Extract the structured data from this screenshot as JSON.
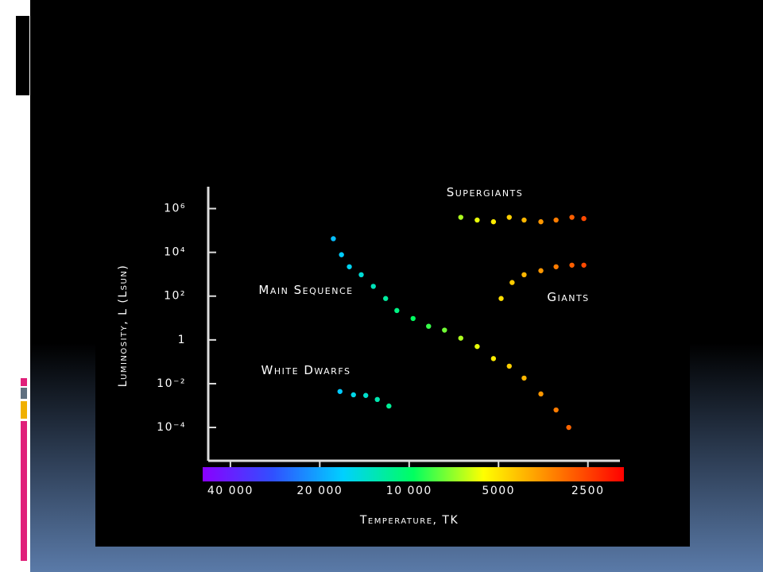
{
  "chart_data": {
    "type": "scatter",
    "xlabel": "Temperature, TK",
    "ylabel": "Luminosity, L (Lsun)",
    "xscale": "log",
    "yscale": "log",
    "xlim": [
      47500,
      1950
    ],
    "ylim": [
      3e-06,
      10000000
    ],
    "xticks": [
      {
        "value": 40000,
        "label": "40 000"
      },
      {
        "value": 20000,
        "label": "20 000"
      },
      {
        "value": 10000,
        "label": "10 000"
      },
      5000,
      2500
    ],
    "yticks": [
      {
        "value": 1000000,
        "label": "10⁶"
      },
      {
        "value": 10000,
        "label": "10⁴"
      },
      {
        "value": 100,
        "label": "10²"
      },
      1,
      {
        "value": 0.01,
        "label": "10⁻²"
      },
      {
        "value": 0.0001,
        "label": "10⁻⁴"
      }
    ],
    "colormap": [
      "#8a00ff",
      "#3050ff",
      "#00d0ff",
      "#00ff60",
      "#ffff00",
      "#ff8000",
      "#ff0000"
    ],
    "series": [
      {
        "name": "Main Sequence",
        "x": [
          18000,
          16900,
          15900,
          14500,
          13200,
          12000,
          11000,
          9700,
          8600,
          7600,
          6700,
          5900,
          5200,
          4600,
          4100,
          3600,
          3200,
          2900
        ],
        "values": [
          42000,
          7800,
          2200,
          950,
          280,
          78,
          22,
          9.5,
          4.2,
          2.8,
          1.2,
          0.5,
          0.14,
          0.063,
          0.018,
          0.0034,
          0.00063,
          0.0001
        ]
      },
      {
        "name": "Supergiants",
        "x": [
          6700,
          5900,
          5200,
          4600,
          4100,
          3600,
          3200,
          2830,
          2580
        ],
        "values": [
          400000,
          300000,
          250000,
          400000,
          300000,
          250000,
          300000,
          400000,
          350000
        ]
      },
      {
        "name": "Giants",
        "x": [
          4900,
          4500,
          4100,
          3600,
          3200,
          2830,
          2580
        ],
        "values": [
          78,
          420,
          950,
          1450,
          2200,
          2600,
          2600
        ]
      },
      {
        "name": "White Dwarfs",
        "x": [
          17100,
          15400,
          14000,
          12800,
          11700
        ],
        "values": [
          0.0044,
          0.0031,
          0.0029,
          0.0019,
          0.00095
        ]
      }
    ]
  }
}
